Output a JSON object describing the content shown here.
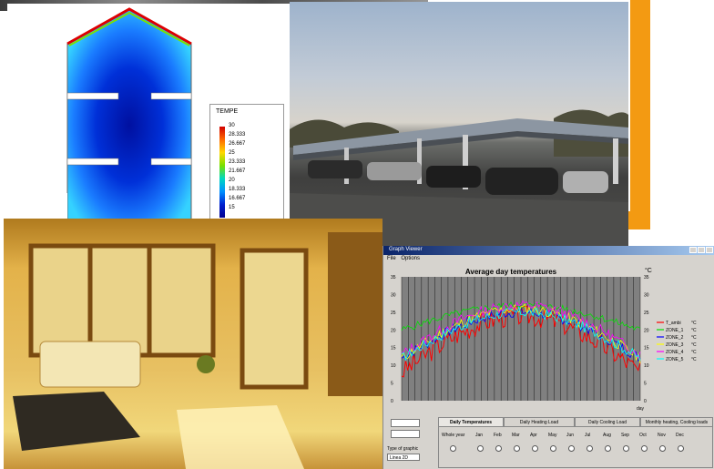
{
  "colors": {
    "orange_frame": "#f39a12",
    "plot_bg": "#808080",
    "t_ambient": "#ff0000",
    "zone1": "#00e000",
    "zone2": "#0000ff",
    "zone3": "#ffff00",
    "zone4": "#ff00ff",
    "zone5": "#00ffff"
  },
  "cfd_legend": {
    "title": "TEMPE",
    "values": [
      "30",
      "28.333",
      "26.667",
      "25",
      "23.333",
      "21.667",
      "20",
      "18.333",
      "16.667",
      "15"
    ]
  },
  "graph_viewer": {
    "window_title": "Graph Viewer",
    "menu": [
      "File",
      "Options"
    ],
    "plot_title": "Average day temperatures",
    "unit": "°C",
    "x_label": "day",
    "series": [
      {
        "name": "T_ambi",
        "unit": "°C"
      },
      {
        "name": "ZONE_1",
        "unit": "°C"
      },
      {
        "name": "ZONE_2",
        "unit": "°C"
      },
      {
        "name": "ZONE_3",
        "unit": "°C"
      },
      {
        "name": "ZONE_4",
        "unit": "°C"
      },
      {
        "name": "ZONE_5",
        "unit": "°C"
      }
    ],
    "y_ticks": [
      "35",
      "30",
      "25",
      "20",
      "15",
      "10",
      "5",
      "0"
    ],
    "tabs": [
      "Daily Temperatures",
      "Daily Heating Load",
      "Daily Cooling Load",
      "Monthly heating, Cooling loads"
    ],
    "whole_year": "Whole year",
    "months": [
      "Jan",
      "Feb",
      "Mar",
      "Apr",
      "May",
      "Jun",
      "Jul",
      "Aug",
      "Sep",
      "Oct",
      "Nov",
      "Dec"
    ],
    "graph_type_label": "Type of graphic",
    "graph_type_value": "Linea 2D"
  }
}
